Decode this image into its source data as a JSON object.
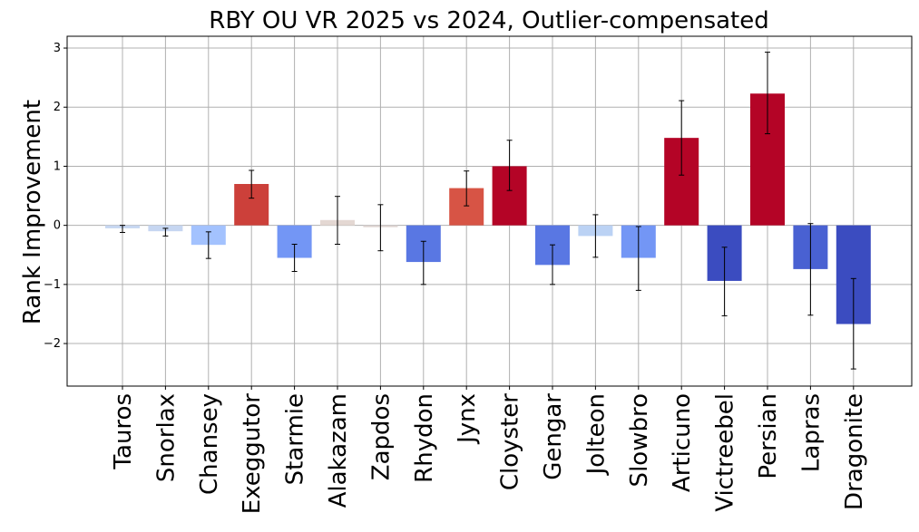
{
  "chart_data": {
    "type": "bar",
    "title": "RBY OU VR 2025 vs 2024, Outlier-compensated",
    "xlabel": "",
    "ylabel": "Rank Improvement",
    "ylim": [
      -2.72,
      3.2
    ],
    "yticks": [
      -2,
      -1,
      0,
      1,
      2,
      3
    ],
    "ytick_labels": [
      "−2",
      "−1",
      "0",
      "1",
      "2",
      "3"
    ],
    "grid": true,
    "categories": [
      "Tauros",
      "Snorlax",
      "Chansey",
      "Exeggutor",
      "Starmie",
      "Alakazam",
      "Zapdos",
      "Rhydon",
      "Jynx",
      "Cloyster",
      "Gengar",
      "Jolteon",
      "Slowbro",
      "Articuno",
      "Victreebel",
      "Persian",
      "Lapras",
      "Dragonite"
    ],
    "values": [
      -0.05,
      -0.1,
      -0.33,
      0.7,
      -0.55,
      0.09,
      -0.03,
      -0.62,
      0.63,
      1.0,
      -0.67,
      -0.18,
      -0.55,
      1.48,
      -0.94,
      2.23,
      -0.74,
      -1.67
    ],
    "error_low": [
      -0.12,
      -0.18,
      -0.56,
      0.46,
      -0.78,
      -0.32,
      -0.43,
      -1.0,
      0.33,
      0.59,
      -1.0,
      -0.54,
      -1.1,
      0.85,
      -1.53,
      1.55,
      -1.52,
      -2.43
    ],
    "error_high": [
      0.0,
      -0.05,
      -0.11,
      0.93,
      -0.32,
      0.49,
      0.35,
      -0.27,
      0.92,
      1.44,
      -0.33,
      0.18,
      -0.02,
      2.11,
      -0.37,
      2.93,
      0.03,
      -0.9
    ],
    "colors": [
      "#c6d6f1",
      "#c6d6f1",
      "#a3c2fe",
      "#cc403a",
      "#7396f5",
      "#e4d8d3",
      "#ddd3d0",
      "#5977e3",
      "#d75445",
      "#b40426",
      "#5977e3",
      "#bbd2f4",
      "#7396f5",
      "#b40426",
      "#3b4cc0",
      "#b40426",
      "#4961d2",
      "#3b4cc0"
    ]
  }
}
